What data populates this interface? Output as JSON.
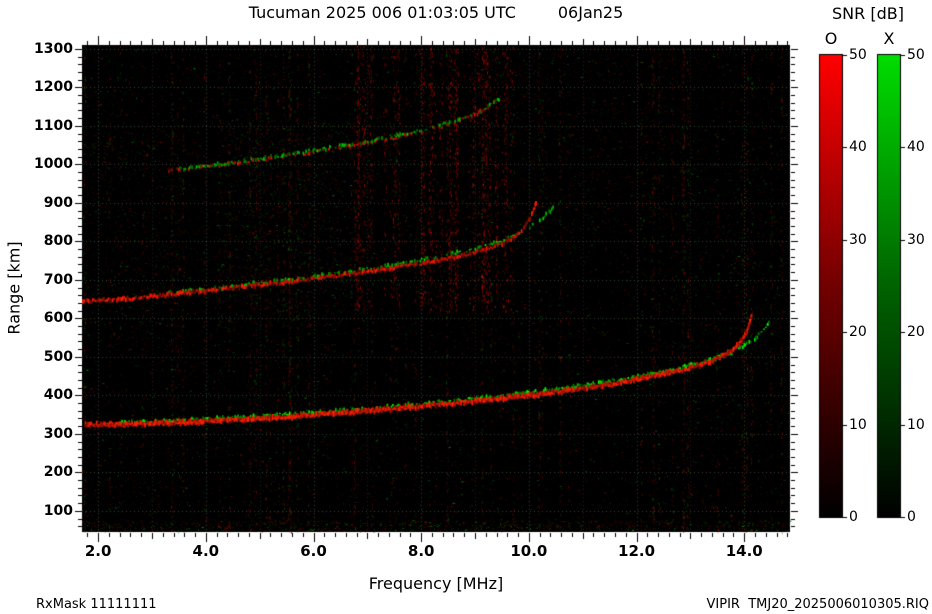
{
  "header": {
    "title": "Tucuman 2025 006 01:03:05 UTC",
    "date": "06Jan25"
  },
  "colorbar": {
    "title": "SNR [dB]",
    "o_label": "O",
    "x_label": "X",
    "o_color": "#ff0000",
    "x_color": "#00dd00",
    "min": 0,
    "max": 50,
    "ticks": [
      50,
      40,
      30,
      20,
      10,
      0
    ]
  },
  "footer": {
    "rx_mask": "RxMask 11111111",
    "file": "VIPIR  TMJ20_2025006010305.RIQ"
  },
  "chart_data": {
    "type": "heatmap",
    "title": "Tucuman 2025 006 01:03:05 UTC  06Jan25",
    "xlabel": "Frequency [MHz]",
    "ylabel": "Range [km]",
    "x_unit": "MHz",
    "y_unit": "km",
    "xlim": [
      1.7,
      14.85
    ],
    "ylim": [
      45,
      1310
    ],
    "x_ticks": [
      "2.0",
      "4.0",
      "6.0",
      "8.0",
      "10.0",
      "12.0",
      "14.0"
    ],
    "y_ticks": [
      1300,
      1200,
      1100,
      1000,
      900,
      800,
      700,
      600,
      500,
      400,
      300,
      200,
      100
    ],
    "grid": true,
    "snr_range": [
      0,
      50
    ],
    "background": "#000000",
    "series": [
      {
        "name": "F-region 1st hop O-mode",
        "mode": "O",
        "color": "#ff1e00",
        "points": [
          [
            1.75,
            323
          ],
          [
            2.2,
            324
          ],
          [
            2.7,
            326
          ],
          [
            3.2,
            328
          ],
          [
            3.7,
            331
          ],
          [
            4.2,
            334
          ],
          [
            4.7,
            337
          ],
          [
            5.2,
            341
          ],
          [
            5.7,
            346
          ],
          [
            6.2,
            351
          ],
          [
            6.7,
            356
          ],
          [
            7.2,
            362
          ],
          [
            7.7,
            368
          ],
          [
            8.2,
            374
          ],
          [
            8.7,
            381
          ],
          [
            9.2,
            388
          ],
          [
            9.7,
            395
          ],
          [
            10.2,
            403
          ],
          [
            10.7,
            412
          ],
          [
            11.2,
            422
          ],
          [
            11.7,
            433
          ],
          [
            12.2,
            446
          ],
          [
            12.6,
            458
          ],
          [
            13.0,
            472
          ],
          [
            13.3,
            486
          ],
          [
            13.6,
            503
          ],
          [
            13.8,
            520
          ],
          [
            13.95,
            543
          ],
          [
            14.05,
            572
          ],
          [
            14.12,
            605
          ]
        ]
      },
      {
        "name": "F-region 1st hop X-mode",
        "mode": "X",
        "color": "#00d800",
        "points": [
          [
            2.3,
            329
          ],
          [
            3.0,
            332
          ],
          [
            3.7,
            336
          ],
          [
            4.4,
            341
          ],
          [
            5.1,
            347
          ],
          [
            5.8,
            353
          ],
          [
            6.5,
            360
          ],
          [
            7.2,
            368
          ],
          [
            7.9,
            377
          ],
          [
            8.6,
            386
          ],
          [
            9.3,
            396
          ],
          [
            9.9,
            406
          ],
          [
            10.5,
            417
          ],
          [
            11.1,
            428
          ],
          [
            11.7,
            441
          ],
          [
            12.3,
            456
          ],
          [
            12.8,
            471
          ],
          [
            13.3,
            489
          ],
          [
            13.7,
            508
          ],
          [
            14.0,
            529
          ],
          [
            14.2,
            550
          ],
          [
            14.35,
            570
          ],
          [
            14.45,
            590
          ]
        ]
      },
      {
        "name": "2nd hop O-mode",
        "mode": "O",
        "color": "#e81800",
        "points": [
          [
            1.7,
            643
          ],
          [
            2.1,
            647
          ],
          [
            2.5,
            651
          ],
          [
            2.9,
            656
          ],
          [
            3.3,
            661
          ],
          [
            3.7,
            667
          ],
          [
            4.1,
            673
          ],
          [
            4.5,
            679
          ],
          [
            4.9,
            685
          ],
          [
            5.3,
            691
          ],
          [
            5.7,
            698
          ],
          [
            6.1,
            705
          ],
          [
            6.5,
            712
          ],
          [
            6.9,
            720
          ],
          [
            7.3,
            728
          ],
          [
            7.7,
            737
          ],
          [
            8.1,
            746
          ],
          [
            8.5,
            756
          ],
          [
            8.9,
            768
          ],
          [
            9.2,
            780
          ],
          [
            9.5,
            795
          ],
          [
            9.7,
            810
          ],
          [
            9.85,
            828
          ],
          [
            9.95,
            848
          ],
          [
            10.05,
            872
          ],
          [
            10.12,
            898
          ]
        ]
      },
      {
        "name": "2nd hop X-mode",
        "mode": "X",
        "color": "#00c400",
        "points": [
          [
            3.3,
            666
          ],
          [
            3.9,
            674
          ],
          [
            4.5,
            683
          ],
          [
            5.1,
            693
          ],
          [
            5.7,
            703
          ],
          [
            6.3,
            714
          ],
          [
            6.9,
            727
          ],
          [
            7.5,
            740
          ],
          [
            8.1,
            755
          ],
          [
            8.6,
            769
          ],
          [
            9.1,
            785
          ],
          [
            9.5,
            802
          ],
          [
            9.9,
            826
          ],
          [
            10.2,
            856
          ],
          [
            10.45,
            888
          ]
        ]
      },
      {
        "name": "3rd hop O-mode",
        "mode": "O",
        "color": "#cc1400",
        "points": [
          [
            3.3,
            983
          ],
          [
            3.9,
            993
          ],
          [
            4.5,
            1003
          ],
          [
            5.1,
            1014
          ],
          [
            5.7,
            1026
          ],
          [
            6.3,
            1039
          ],
          [
            6.9,
            1053
          ],
          [
            7.5,
            1069
          ],
          [
            8.0,
            1085
          ],
          [
            8.5,
            1103
          ],
          [
            8.9,
            1123
          ],
          [
            9.2,
            1145
          ],
          [
            9.4,
            1168
          ]
        ]
      },
      {
        "name": "3rd hop X-mode",
        "mode": "X",
        "color": "#00b400",
        "points": [
          [
            3.5,
            988
          ],
          [
            4.1,
            998
          ],
          [
            4.7,
            1009
          ],
          [
            5.3,
            1021
          ],
          [
            5.9,
            1034
          ],
          [
            6.5,
            1048
          ],
          [
            7.1,
            1063
          ],
          [
            7.7,
            1080
          ],
          [
            8.2,
            1097
          ],
          [
            8.7,
            1116
          ],
          [
            9.1,
            1138
          ],
          [
            9.35,
            1160
          ],
          [
            9.5,
            1180
          ]
        ]
      }
    ]
  }
}
